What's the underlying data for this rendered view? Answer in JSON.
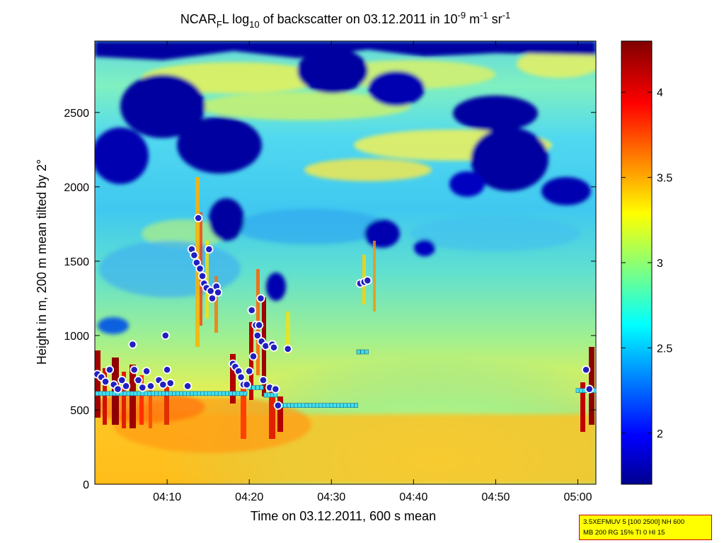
{
  "chart_data": {
    "type": "heatmap",
    "title": {
      "prefix": "NCAR",
      "prefix_sub": "F",
      "part1": "L log",
      "log_sub": "10",
      "part2": " of backscatter on 03.12.2011 in 10",
      "exp1": "-9",
      "part3": " m",
      "exp2": "-1",
      "part4": " sr",
      "exp3": "-1"
    },
    "xlabel": "Time on 03.12.2011, 600 s mean",
    "ylabel": "Height in m, 200 m mean tilted by 2°",
    "xticks": [
      {
        "label": "04:10",
        "minutes": 10
      },
      {
        "label": "04:20",
        "minutes": 20
      },
      {
        "label": "04:30",
        "minutes": 30
      },
      {
        "label": "04:40",
        "minutes": 40
      },
      {
        "label": "04:50",
        "minutes": 50
      },
      {
        "label": "05:00",
        "minutes": 60
      }
    ],
    "xlim_minutes_after_0400": [
      1.2,
      62.2
    ],
    "yticks": [
      0,
      500,
      1000,
      1500,
      2000,
      2500
    ],
    "ylim": [
      0,
      2980
    ],
    "colorbar": {
      "ticks": [
        2,
        2.5,
        3,
        3.5,
        4
      ],
      "range": [
        1.7,
        4.3
      ],
      "colormap": "jet"
    },
    "colors": {
      "cloud_base_marker_fill": "#2020c0",
      "cloud_base_marker_edge": "#ffffff",
      "mixing_layer_marker": "#40e0f0",
      "info_box_bg": "#ffff00",
      "info_box_border": "#cc0000"
    },
    "mixing_layer_height_series": [
      {
        "t": 1.5,
        "h": 610
      },
      {
        "t": 4,
        "h": 610
      },
      {
        "t": 7,
        "h": 610
      },
      {
        "t": 10,
        "h": 610
      },
      {
        "t": 13,
        "h": 610
      },
      {
        "t": 16,
        "h": 610
      },
      {
        "t": 19.5,
        "h": 610
      },
      {
        "t": 20,
        "h": 650
      },
      {
        "t": 21.5,
        "h": 650
      },
      {
        "t": 22,
        "h": 600
      },
      {
        "t": 23.2,
        "h": 600
      },
      {
        "t": 23.5,
        "h": 530
      },
      {
        "t": 27,
        "h": 530
      },
      {
        "t": 30,
        "h": 530
      },
      {
        "t": 33,
        "h": 530
      },
      {
        "t": 33.3,
        "h": 890
      },
      {
        "t": 34.3,
        "h": 890
      },
      {
        "t": 60,
        "h": 630
      },
      {
        "t": 62,
        "h": 630
      }
    ],
    "cloud_base_points": [
      {
        "t": 1.5,
        "h": 740
      },
      {
        "t": 2,
        "h": 720
      },
      {
        "t": 2.5,
        "h": 690
      },
      {
        "t": 3,
        "h": 770
      },
      {
        "t": 3.5,
        "h": 670
      },
      {
        "t": 4,
        "h": 640
      },
      {
        "t": 4.5,
        "h": 700
      },
      {
        "t": 5,
        "h": 660
      },
      {
        "t": 5.8,
        "h": 940
      },
      {
        "t": 6,
        "h": 770
      },
      {
        "t": 6.5,
        "h": 700
      },
      {
        "t": 7,
        "h": 650
      },
      {
        "t": 7.5,
        "h": 760
      },
      {
        "t": 8,
        "h": 660
      },
      {
        "t": 9,
        "h": 700
      },
      {
        "t": 9.5,
        "h": 670
      },
      {
        "t": 9.8,
        "h": 1000
      },
      {
        "t": 10,
        "h": 770
      },
      {
        "t": 10.4,
        "h": 680
      },
      {
        "t": 12.5,
        "h": 660
      },
      {
        "t": 13,
        "h": 1580
      },
      {
        "t": 13.3,
        "h": 1540
      },
      {
        "t": 13.6,
        "h": 1490
      },
      {
        "t": 13.8,
        "h": 1790
      },
      {
        "t": 14,
        "h": 1450
      },
      {
        "t": 14.3,
        "h": 1400
      },
      {
        "t": 14.5,
        "h": 1350
      },
      {
        "t": 14.8,
        "h": 1320
      },
      {
        "t": 15.1,
        "h": 1580
      },
      {
        "t": 15.3,
        "h": 1300
      },
      {
        "t": 15.5,
        "h": 1250
      },
      {
        "t": 16,
        "h": 1330
      },
      {
        "t": 16.2,
        "h": 1290
      },
      {
        "t": 18,
        "h": 810
      },
      {
        "t": 18.3,
        "h": 790
      },
      {
        "t": 18.7,
        "h": 760
      },
      {
        "t": 19,
        "h": 720
      },
      {
        "t": 19.3,
        "h": 670
      },
      {
        "t": 19.7,
        "h": 670
      },
      {
        "t": 20,
        "h": 760
      },
      {
        "t": 20.3,
        "h": 1170
      },
      {
        "t": 20.5,
        "h": 860
      },
      {
        "t": 20.8,
        "h": 1070
      },
      {
        "t": 21,
        "h": 1000
      },
      {
        "t": 21.2,
        "h": 1070
      },
      {
        "t": 21.4,
        "h": 1250
      },
      {
        "t": 21.5,
        "h": 960
      },
      {
        "t": 21.7,
        "h": 700
      },
      {
        "t": 22,
        "h": 930
      },
      {
        "t": 22.5,
        "h": 650
      },
      {
        "t": 22.8,
        "h": 940
      },
      {
        "t": 23,
        "h": 920
      },
      {
        "t": 23.2,
        "h": 640
      },
      {
        "t": 23.5,
        "h": 530
      },
      {
        "t": 24.7,
        "h": 910
      },
      {
        "t": 33.5,
        "h": 1350
      },
      {
        "t": 34,
        "h": 1360
      },
      {
        "t": 34.4,
        "h": 1370
      },
      {
        "t": 61,
        "h": 770
      },
      {
        "t": 61.4,
        "h": 640
      }
    ]
  },
  "info_box": {
    "line1": "3.5XEFMUV 5 [100 2500] NH 600",
    "line2": "MB 200 RG 15% TI 0 HI 15"
  }
}
